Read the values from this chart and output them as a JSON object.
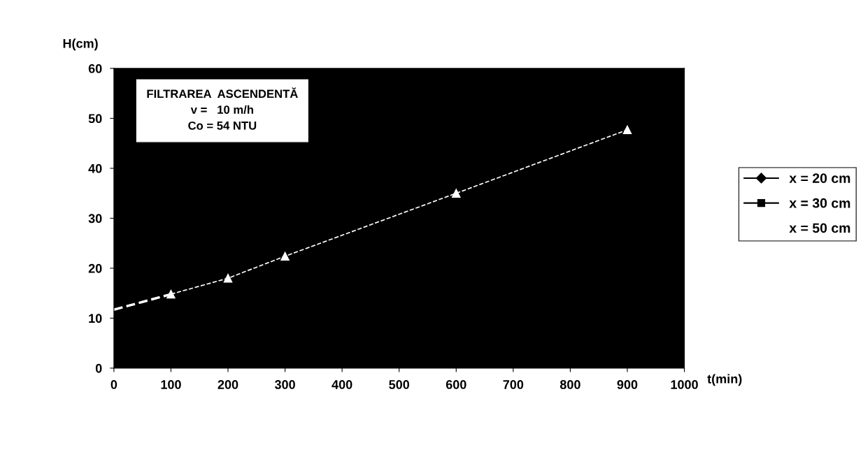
{
  "chart_data": {
    "type": "line",
    "xlabel": "t(min)",
    "ylabel": "H(cm)",
    "annotations": [
      "FILTRAREA  ASCENDENTĂ\nv =   10 m/h\nCo = 54 NTU"
    ],
    "x": [
      100,
      200,
      300,
      600,
      900
    ],
    "series": [
      {
        "name": "x = 20 cm",
        "color": "#000000",
        "marker": "diamond",
        "values": [
          null,
          null,
          null,
          null,
          null
        ]
      },
      {
        "name": "x = 30 cm",
        "color": "#000000",
        "marker": "square",
        "values": [
          null,
          null,
          null,
          null,
          null
        ]
      },
      {
        "name": "x = 50 cm",
        "color": "#ffffff",
        "marker": "triangle",
        "line_style": "dashed",
        "values": [
          14.8,
          18.0,
          22.4,
          35.0,
          47.7
        ]
      },
      {
        "type": "line",
        "color": "#ffffff",
        "marker": "none",
        "line_style": "dashed",
        "x": [
          0,
          100
        ],
        "values": [
          11.7,
          14.8
        ]
      }
    ],
    "xlim": [
      0,
      1000
    ],
    "xticks": [
      0,
      100,
      200,
      300,
      400,
      500,
      600,
      700,
      800,
      900,
      1000
    ],
    "ylim": [
      0,
      60
    ],
    "yticks": [
      0,
      10,
      20,
      30,
      40,
      50,
      60
    ],
    "grid": false,
    "legend": "right"
  }
}
